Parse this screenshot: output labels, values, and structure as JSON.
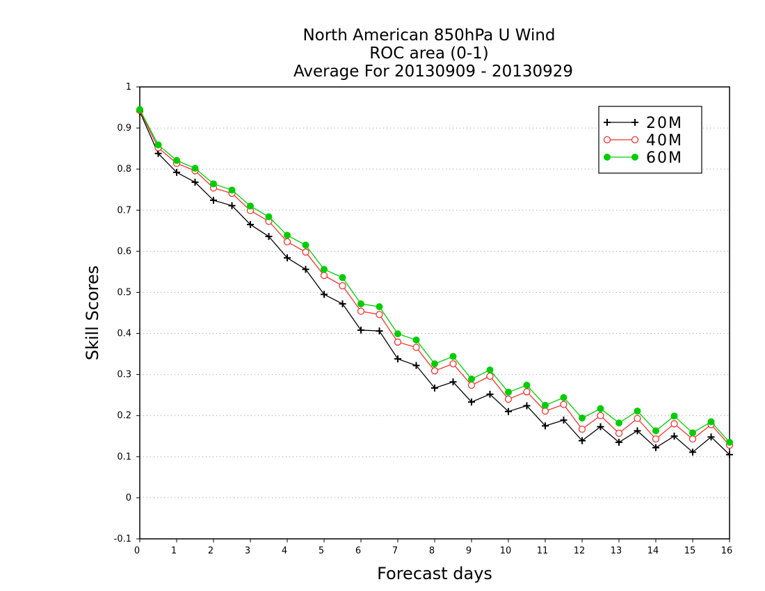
{
  "chart_data": {
    "type": "line",
    "title": [
      "North American 850hPa U Wind",
      "ROC area (0-1)",
      "Average For 20130909 - 20130929"
    ],
    "xlabel": "Forecast days",
    "ylabel": "Skill Scores",
    "xlim": [
      0,
      16
    ],
    "ylim": [
      -0.1,
      1
    ],
    "x_ticks": [
      "0",
      "1",
      "2",
      "3",
      "4",
      "5",
      "6",
      "7",
      "8",
      "9",
      "10",
      "11",
      "12",
      "13",
      "14",
      "15",
      "16"
    ],
    "y_ticks": [
      "-0.1",
      "0",
      "0.1",
      "0.2",
      "0.3",
      "0.4",
      "0.5",
      "0.6",
      "0.7",
      "0.8",
      "0.9",
      "1"
    ],
    "grid": true,
    "legend_position": "top-right",
    "x": [
      0,
      0.5,
      1,
      1.5,
      2,
      2.5,
      3,
      3.5,
      4,
      4.5,
      5,
      5.5,
      6,
      6.5,
      7,
      7.5,
      8,
      8.5,
      9,
      9.5,
      10,
      10.5,
      11,
      11.5,
      12,
      12.5,
      13,
      13.5,
      14,
      14.5,
      15,
      15.5,
      16
    ],
    "series": [
      {
        "name": "20M",
        "color": "#000000",
        "marker": "plus",
        "values": [
          0.94,
          0.838,
          0.792,
          0.768,
          0.724,
          0.711,
          0.665,
          0.636,
          0.584,
          0.556,
          0.495,
          0.472,
          0.408,
          0.406,
          0.338,
          0.322,
          0.267,
          0.282,
          0.233,
          0.252,
          0.21,
          0.224,
          0.175,
          0.189,
          0.139,
          0.173,
          0.135,
          0.163,
          0.122,
          0.15,
          0.111,
          0.148,
          0.105
        ]
      },
      {
        "name": "40M",
        "color": "#ee3333",
        "marker": "open-circle",
        "values": [
          0.943,
          0.852,
          0.814,
          0.796,
          0.754,
          0.741,
          0.699,
          0.673,
          0.623,
          0.598,
          0.541,
          0.516,
          0.454,
          0.446,
          0.379,
          0.366,
          0.309,
          0.326,
          0.274,
          0.296,
          0.24,
          0.258,
          0.211,
          0.227,
          0.167,
          0.2,
          0.157,
          0.193,
          0.143,
          0.18,
          0.143,
          0.178,
          0.128
        ]
      },
      {
        "name": "60M",
        "color": "#00cc00",
        "marker": "filled-circle",
        "values": [
          0.945,
          0.859,
          0.821,
          0.802,
          0.764,
          0.749,
          0.71,
          0.684,
          0.639,
          0.615,
          0.556,
          0.536,
          0.472,
          0.465,
          0.399,
          0.384,
          0.326,
          0.344,
          0.289,
          0.311,
          0.257,
          0.274,
          0.225,
          0.244,
          0.194,
          0.217,
          0.182,
          0.211,
          0.163,
          0.199,
          0.158,
          0.185,
          0.135
        ]
      }
    ]
  }
}
